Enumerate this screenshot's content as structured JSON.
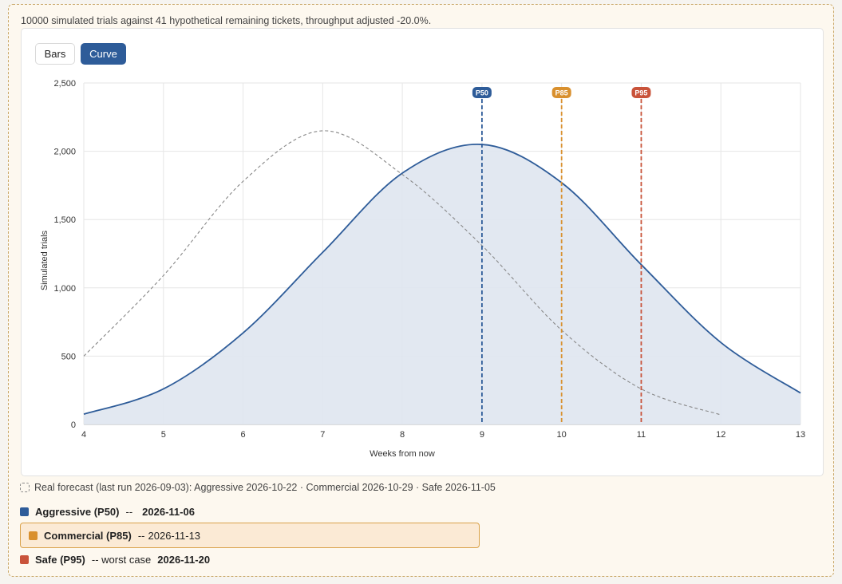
{
  "summary": "10000 simulated trials against 41 hypothetical remaining tickets, throughput adjusted -20.0%.",
  "toggle": {
    "bars_label": "Bars",
    "curve_label": "Curve",
    "active": "Curve"
  },
  "chart_data": {
    "type": "area",
    "xlabel": "Weeks from now",
    "ylabel": "Simulated trials",
    "xlim": [
      4,
      13
    ],
    "ylim": [
      0,
      2500
    ],
    "x_ticks": [
      "4",
      "5",
      "6",
      "7",
      "8",
      "9",
      "10",
      "11",
      "12",
      "13"
    ],
    "y_ticks": [
      "0",
      "500",
      "1,000",
      "1,500",
      "2,000",
      "2,500"
    ],
    "grid": true,
    "series": [
      {
        "x": [
          4,
          5,
          6,
          7,
          8,
          9,
          10,
          11,
          12,
          13
        ],
        "values": [
          75,
          260,
          670,
          1260,
          1840,
          2050,
          1770,
          1170,
          600,
          230
        ],
        "color": "#2e5c99",
        "style": "solid-filled"
      },
      {
        "x": [
          4,
          5,
          6,
          7,
          8,
          9,
          10,
          11,
          12
        ],
        "values": [
          500,
          1090,
          1780,
          2150,
          1830,
          1310,
          690,
          260,
          70
        ],
        "color": "#888888",
        "style": "dashed"
      }
    ],
    "markers": [
      {
        "label": "P50",
        "x": 9,
        "color": "#2e5c99"
      },
      {
        "label": "P85",
        "x": 10,
        "color": "#d9902e"
      },
      {
        "label": "P95",
        "x": 11,
        "color": "#c9533a"
      }
    ]
  },
  "real_forecast": "Real forecast (last run 2026-09-03): Aggressive 2026-10-22 · Commercial 2026-10-29 · Safe 2026-11-05",
  "legend": [
    {
      "name": "Aggressive (P50)",
      "note": "--",
      "date": "2026-11-06",
      "color": "#2e5c99"
    },
    {
      "name": "Commercial (P85)",
      "note": "--",
      "date": "2026-11-13",
      "color": "#d9902e"
    },
    {
      "name": "Safe (P95)",
      "note": "-- worst case",
      "date": "2026-11-20",
      "color": "#c9533a"
    }
  ]
}
